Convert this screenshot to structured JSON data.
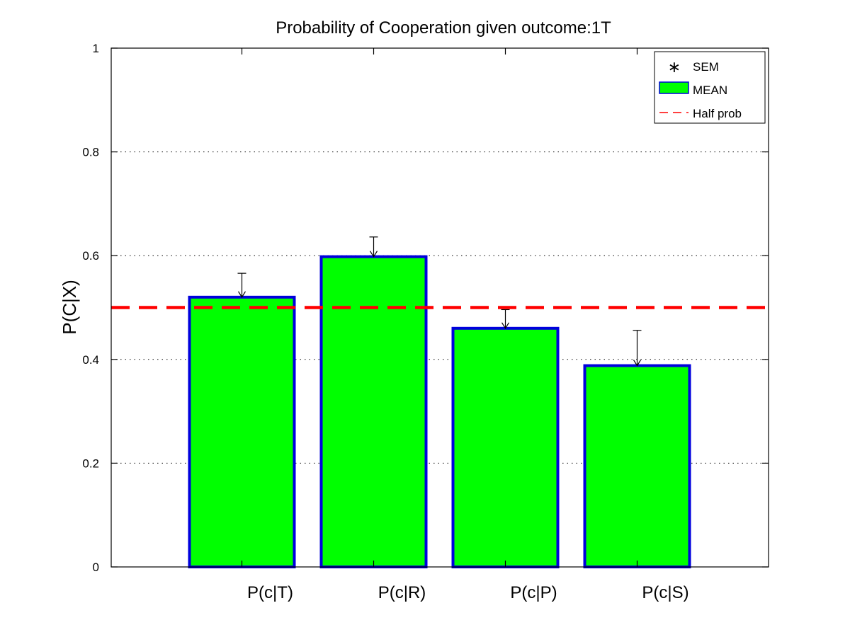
{
  "chart_data": {
    "type": "bar",
    "title": "Probability of Cooperation given outcome:1T",
    "xlabel": "",
    "ylabel": "P(C|X)",
    "categories": [
      "P(c|T)",
      "P(c|R)",
      "P(c|P)",
      "P(c|S)"
    ],
    "series": [
      {
        "name": "MEAN",
        "values": [
          0.52,
          0.598,
          0.46,
          0.388
        ],
        "sem": [
          0.046,
          0.038,
          0.036,
          0.068
        ]
      }
    ],
    "reference_line": {
      "name": "Half prob",
      "value": 0.5
    },
    "legend_entries": [
      "SEM",
      "MEAN",
      "Half prob"
    ],
    "legend_position": "top-right",
    "ylim": [
      0,
      1
    ],
    "yticks": [
      0,
      0.2,
      0.4,
      0.6,
      0.8,
      1
    ],
    "ytick_labels": [
      "0",
      "0.2",
      "0.4",
      "0.6",
      "0.8",
      "1"
    ],
    "grid": "horizontal dotted",
    "colors": {
      "bar_fill": "#00ff00",
      "bar_edge": "#0000dd",
      "reference_line": "#ff0000",
      "errorbar": "#000000"
    }
  }
}
